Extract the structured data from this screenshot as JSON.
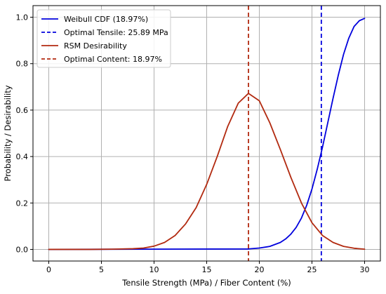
{
  "chart_data": {
    "type": "line",
    "title": "",
    "xlabel": "Tensile Strength (MPa) / Fiber Content (%)",
    "ylabel": "Probability / Desirability",
    "xlim": [
      -1.5,
      31.5
    ],
    "ylim": [
      -0.05,
      1.05
    ],
    "xticks": [
      0,
      5,
      10,
      15,
      20,
      25,
      30
    ],
    "yticks": [
      0.0,
      0.2,
      0.4,
      0.6,
      0.8,
      1.0
    ],
    "xtick_labels": [
      "0",
      "5",
      "10",
      "15",
      "20",
      "25",
      "30"
    ],
    "ytick_labels": [
      "0.0",
      "0.2",
      "0.4",
      "0.6",
      "0.8",
      "1.0"
    ],
    "grid": true,
    "legend_position": "top-left",
    "series": [
      {
        "name": "Weibull CDF (18.97%)",
        "kind": "line",
        "style": "solid",
        "color": "#0000dd",
        "x": [
          0,
          19,
          20,
          21,
          22,
          22.5,
          23,
          23.5,
          24,
          24.5,
          25,
          25.5,
          26,
          26.5,
          27,
          27.5,
          28,
          28.5,
          29,
          29.5,
          30
        ],
        "y": [
          0.0,
          0.002,
          0.006,
          0.013,
          0.03,
          0.045,
          0.066,
          0.095,
          0.135,
          0.19,
          0.26,
          0.345,
          0.44,
          0.545,
          0.65,
          0.75,
          0.84,
          0.91,
          0.96,
          0.985,
          0.995
        ]
      },
      {
        "name": "Optimal Tensile: 25.89 MPa",
        "kind": "vline",
        "style": "dashed",
        "color": "#0000dd",
        "x": 25.89
      },
      {
        "name": "RSM Desirability",
        "kind": "line",
        "style": "solid",
        "color": "#b22a10",
        "x": [
          0,
          4,
          6,
          8,
          9,
          10,
          11,
          12,
          13,
          14,
          15,
          16,
          17,
          18,
          18.97,
          20,
          21,
          22,
          23,
          24,
          25,
          26,
          27,
          28,
          29,
          30
        ],
        "y": [
          0.0,
          0.0,
          0.001,
          0.003,
          0.006,
          0.014,
          0.03,
          0.06,
          0.11,
          0.18,
          0.28,
          0.4,
          0.53,
          0.63,
          0.672,
          0.64,
          0.545,
          0.43,
          0.31,
          0.2,
          0.115,
          0.06,
          0.03,
          0.013,
          0.005,
          0.001
        ]
      },
      {
        "name": "Optimal Content: 18.97%",
        "kind": "vline",
        "style": "dashed",
        "color": "#b22a10",
        "x": 18.97
      }
    ]
  }
}
